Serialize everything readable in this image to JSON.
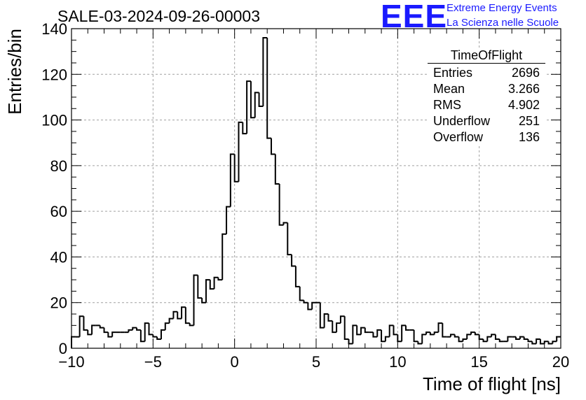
{
  "title": "SALE-03-2024-09-26-00003",
  "logo": {
    "mark": "EEE",
    "line1": "Extreme Energy Events",
    "line2": "La Scienza nelle Scuole",
    "color": "#1a1aff"
  },
  "stats_box": {
    "title": "TimeOfFlight",
    "rows": [
      {
        "label": "Entries",
        "value": "2696"
      },
      {
        "label": "Mean",
        "value": "3.266"
      },
      {
        "label": "RMS",
        "value": "4.902"
      },
      {
        "label": "Underflow",
        "value": "251"
      },
      {
        "label": "Overflow",
        "value": "136"
      }
    ]
  },
  "chart_data": {
    "type": "bar",
    "histogram": true,
    "title": "SALE-03-2024-09-26-00003",
    "xlabel": "Time of flight [ns]",
    "ylabel": "Entries/bin",
    "xlim": [
      -10,
      20
    ],
    "ylim": [
      0,
      140
    ],
    "bin_width": 0.25,
    "x_ticks": [
      -10,
      -5,
      0,
      5,
      10,
      15,
      20
    ],
    "x_tick_labels": [
      "−10",
      "−5",
      "0",
      "5",
      "10",
      "15",
      "20"
    ],
    "y_ticks": [
      0,
      20,
      40,
      60,
      80,
      100,
      120,
      140
    ],
    "y_tick_labels": [
      "0",
      "20",
      "40",
      "60",
      "80",
      "100",
      "120",
      "140"
    ],
    "grid": true,
    "line_color": "#000000",
    "values": [
      5,
      5,
      14,
      8,
      6,
      10,
      10,
      9,
      7,
      5,
      7,
      7,
      7,
      7,
      8,
      9,
      8,
      3,
      11,
      6,
      5,
      4,
      8,
      11,
      13,
      16,
      13,
      18,
      11,
      10,
      32,
      22,
      20,
      30,
      26,
      31,
      30,
      50,
      62,
      85,
      73,
      99,
      94,
      117,
      101,
      112,
      106,
      136,
      92,
      85,
      72,
      54,
      55,
      41,
      36,
      27,
      21,
      20,
      17,
      20,
      20,
      9,
      15,
      12,
      7,
      11,
      14,
      4,
      2,
      10,
      6,
      9,
      7,
      7,
      5,
      8,
      3,
      5,
      10,
      6,
      3,
      10,
      8,
      8,
      3,
      2,
      6,
      7,
      6,
      7,
      11,
      5,
      5,
      6,
      5,
      3,
      4,
      6,
      7,
      6,
      4,
      3,
      5,
      6,
      4,
      3,
      3,
      5,
      5,
      4,
      5,
      4,
      3,
      2,
      4,
      2,
      3,
      2,
      3,
      5
    ]
  }
}
